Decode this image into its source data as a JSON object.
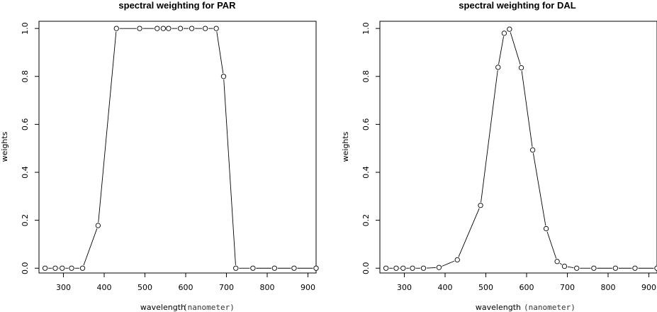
{
  "chart_data": [
    {
      "type": "line",
      "title": "spectral weighting for PAR",
      "xlabel": "wavelength",
      "xlabel_unit": "(nanometer)",
      "ylabel": "weights",
      "xlim": [
        240,
        920
      ],
      "ylim": [
        -0.02,
        1.03
      ],
      "xticks": [
        300,
        400,
        500,
        600,
        700,
        800,
        900
      ],
      "yticks": [
        0.0,
        0.2,
        0.4,
        0.6,
        0.8,
        1.0
      ],
      "xtick_labels": [
        "300",
        "400",
        "500",
        "600",
        "700",
        "800",
        "900"
      ],
      "ytick_labels": [
        "0.0",
        "0.2",
        "0.4",
        "0.6",
        "0.8",
        "1.0"
      ],
      "grid": false,
      "series": [
        {
          "x": [
            255,
            280,
            297,
            320,
            347,
            385,
            430,
            487,
            530,
            545,
            558,
            587,
            615,
            648,
            675,
            693,
            723,
            765,
            818,
            866,
            920
          ],
          "y": [
            0,
            0,
            0,
            0,
            0,
            0.178,
            1.0,
            1.0,
            1.0,
            1.0,
            1.0,
            1.0,
            1.0,
            1.0,
            1.0,
            0.8,
            0,
            0,
            0,
            0,
            0
          ]
        }
      ]
    },
    {
      "type": "line",
      "title": "spectral weighting for DAL",
      "xlabel": "wavelength",
      "xlabel_unit": "(nanometer)",
      "ylabel": "weights",
      "xlim": [
        240,
        920
      ],
      "ylim": [
        -0.02,
        1.03
      ],
      "xticks": [
        300,
        400,
        500,
        600,
        700,
        800,
        900
      ],
      "yticks": [
        0.0,
        0.2,
        0.4,
        0.6,
        0.8,
        1.0
      ],
      "xtick_labels": [
        "300",
        "400",
        "500",
        "600",
        "700",
        "800",
        "900"
      ],
      "ytick_labels": [
        "0.0",
        "0.2",
        "0.4",
        "0.6",
        "0.8",
        "1.0"
      ],
      "grid": false,
      "series": [
        {
          "x": [
            255,
            280,
            297,
            320,
            347,
            385,
            430,
            487,
            530,
            545,
            558,
            587,
            615,
            648,
            675,
            693,
            723,
            765,
            818,
            866,
            920
          ],
          "y": [
            0,
            0,
            0,
            0,
            0,
            0.003,
            0.035,
            0.262,
            0.838,
            0.98,
            0.997,
            0.836,
            0.493,
            0.165,
            0.028,
            0.008,
            0,
            0,
            0,
            0,
            0
          ]
        }
      ]
    }
  ]
}
